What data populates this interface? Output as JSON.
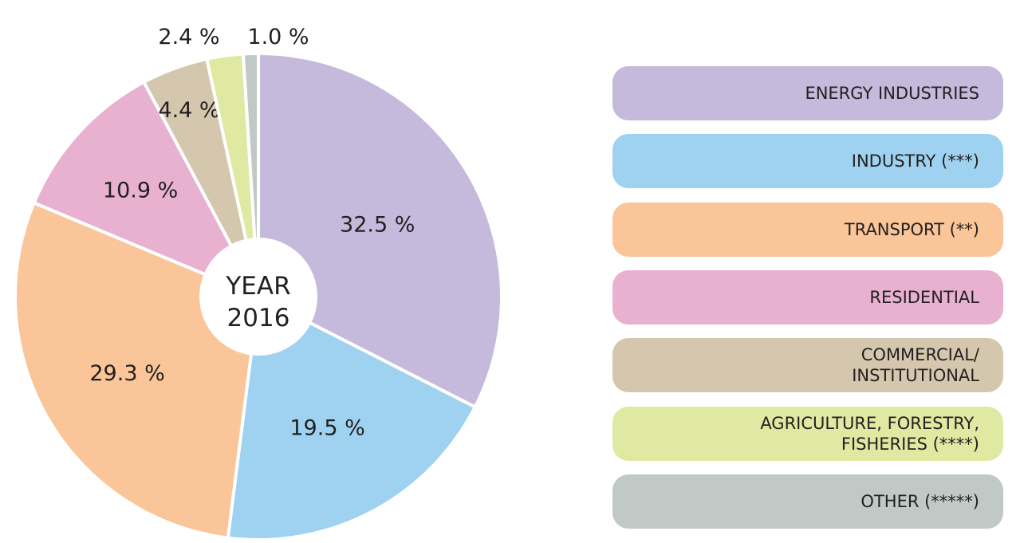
{
  "chart_data": {
    "type": "pie",
    "title": "",
    "center_label": [
      "YEAR",
      "2016"
    ],
    "start": "top",
    "direction": "clockwise",
    "slices": [
      {
        "name": "ENERGY INDUSTRIES",
        "value": 32.5,
        "label": "32.5 %",
        "color": "#c5b9dc"
      },
      {
        "name": "INDUSTRY (***)",
        "value": 19.5,
        "label": "19.5 %",
        "color": "#9fd2f0"
      },
      {
        "name": "TRANSPORT (**)",
        "value": 29.3,
        "label": "29.3 %",
        "color": "#f9c599"
      },
      {
        "name": "RESIDENTIAL",
        "value": 10.9,
        "label": "10.9 %",
        "color": "#e8b1d0"
      },
      {
        "name": "COMMERCIAL/\nINSTITUTIONAL",
        "value": 4.4,
        "label": "4.4 %",
        "color": "#d5c7ae"
      },
      {
        "name": "AGRICULTURE, FORESTRY,\nFISHERIES (****)",
        "value": 2.4,
        "label": "2.4 %",
        "color": "#dfe9a2"
      },
      {
        "name": "OTHER (*****)",
        "value": 1.0,
        "label": "1.0 %",
        "color": "#c1c9c7"
      }
    ],
    "legend_position": "right"
  }
}
